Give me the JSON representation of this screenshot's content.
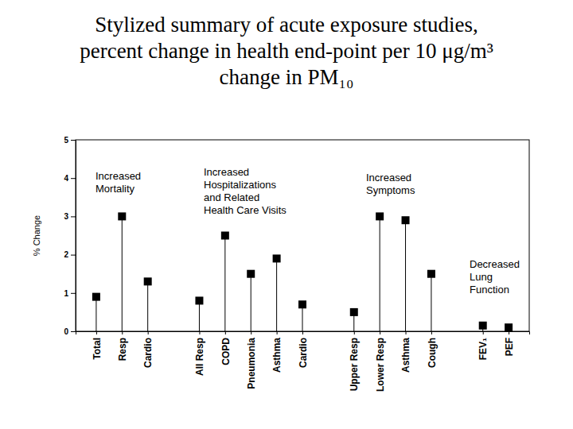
{
  "chart_data": {
    "type": "lollipop",
    "title": "Stylized summary of acute exposure studies,\npercent change in health end-point per 10 μg/m³\nchange in PM₁₀",
    "y_label": "% Change",
    "categories": [
      "Total",
      "Resp",
      "Cardio",
      "All Resp",
      "COPD",
      "Pneumonia",
      "Asthma",
      "Cardio",
      "Upper Resp",
      "Lower Resp",
      "Asthma",
      "Cough",
      "FEV₁",
      "PEF"
    ],
    "values": [
      0.9,
      3.0,
      1.3,
      0.8,
      2.5,
      1.5,
      1.9,
      0.7,
      0.5,
      3.0,
      2.9,
      1.5,
      0.15,
      0.1
    ],
    "annotations": [
      "Increased\nMortality",
      "Increased\nHospitalizations\nand Related\nHealth Care Visits",
      "Increased\nSymptoms",
      "Decreased\nLung\nFunction"
    ],
    "color": "#000000",
    "marker": "square",
    "ylim": [
      0,
      5
    ],
    "yticks": [
      0,
      1,
      2,
      3,
      4,
      5
    ],
    "grid": false
  }
}
